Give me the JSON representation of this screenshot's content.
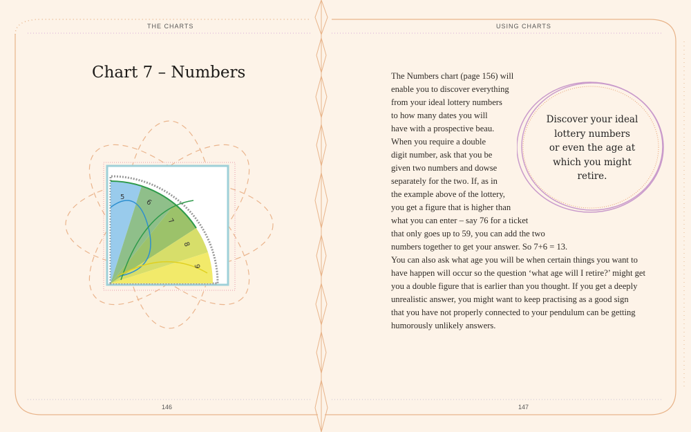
{
  "left_page": {
    "running_head": "THE CHARTS",
    "title": "Chart 7 – Numbers",
    "page_number": "146",
    "chart_segments": [
      "5",
      "6",
      "7",
      "8",
      "9"
    ]
  },
  "right_page": {
    "running_head": "USING CHARTS",
    "page_number": "147",
    "body_lines": [
      "The Numbers chart (page 156) will",
      "enable you to discover everything",
      "from your ideal lottery numbers",
      "to how many dates you will",
      "have with a prospective beau.",
      "When you require a double",
      "digit number, ask that you be",
      "given two numbers and dowse",
      "separately for the two. If, as in",
      "the example above of the lottery,",
      "you get a figure that is higher than",
      "what you can enter – say 76 for a ticket",
      "that only goes up to 59, you can add the two",
      "numbers together to get your answer. So 7+6 = 13.",
      "You can also ask what age you will be when certain things you want to",
      "have happen will occur so the question ‘what age will I retire?’ might get",
      "you a double figure that is earlier than you thought. If you get a  deeply",
      "unrealistic answer, you might want to keep practising as a good sign",
      "that you have not properly connected to your pendulum can be getting",
      "humorously unlikely answers."
    ],
    "callout_lines": [
      "Discover your ideal",
      "lottery numbers",
      "or even the age at",
      "which you might",
      "retire."
    ]
  },
  "colors": {
    "background": "#fdf3e8",
    "border": "#e8b48a",
    "callout_ring": "#c99acb",
    "blue": "#8ec5ea",
    "green": "#7fb36a",
    "yellow": "#f2ea6a"
  }
}
